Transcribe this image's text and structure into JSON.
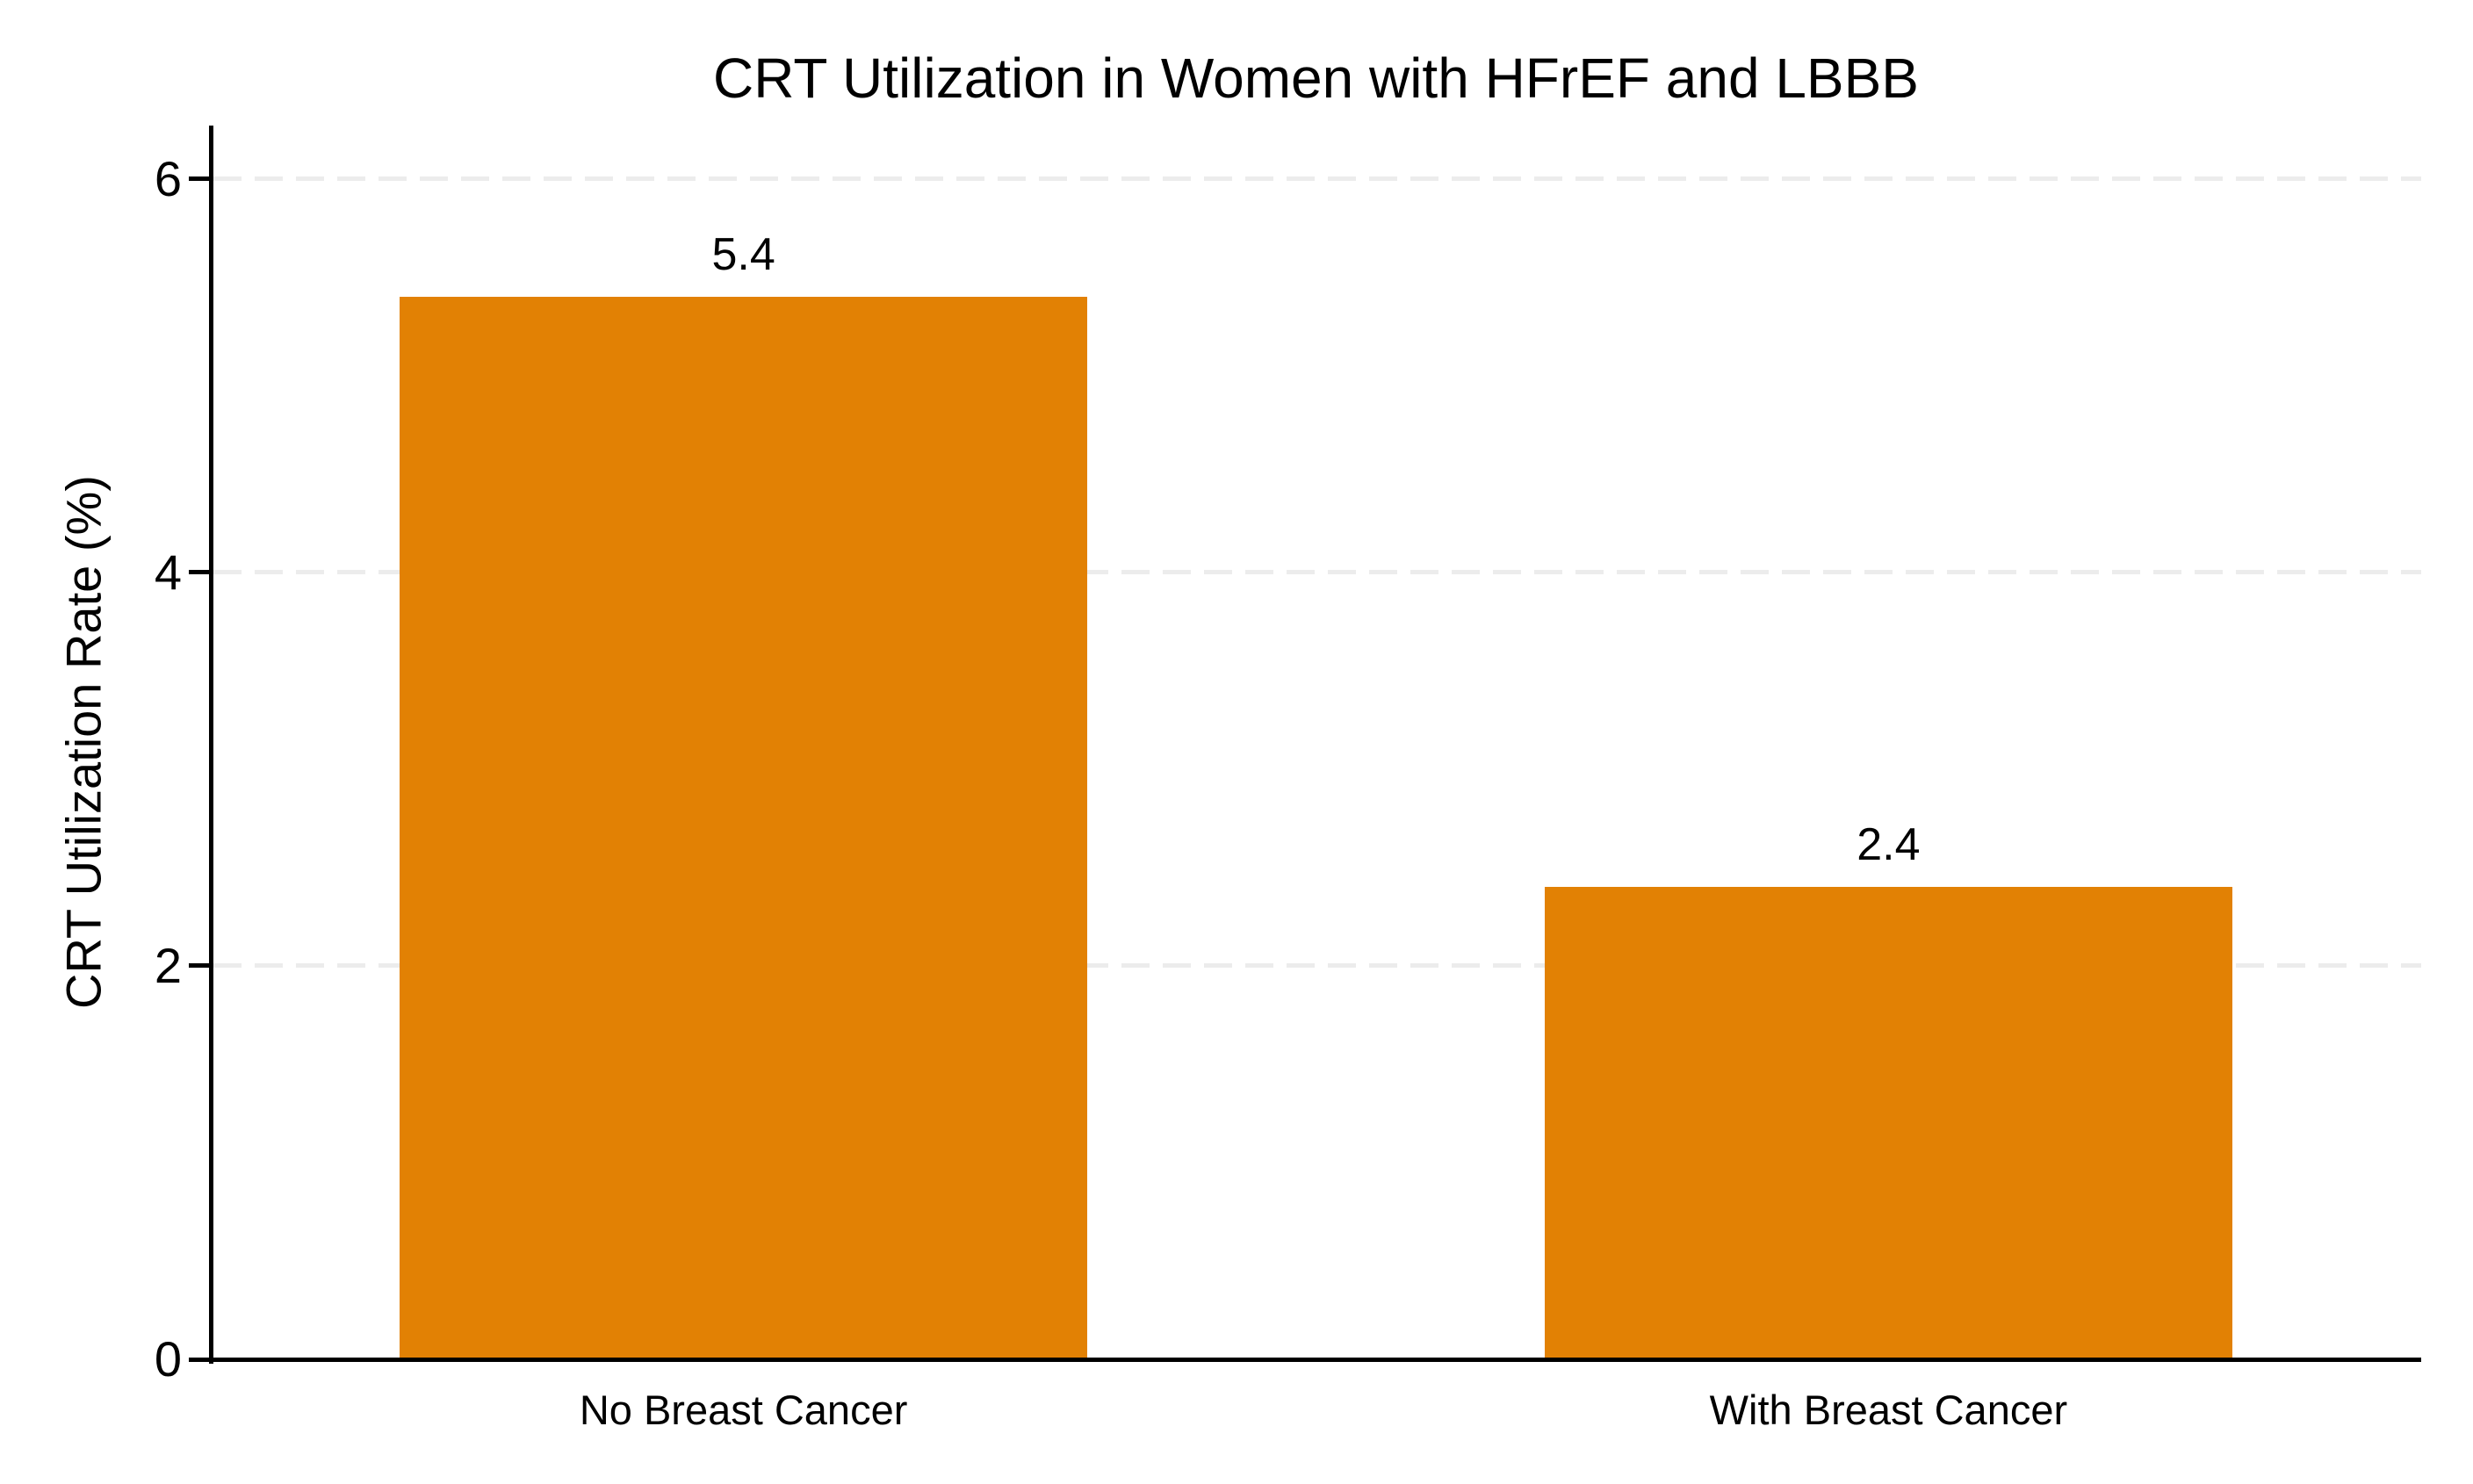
{
  "chart_data": {
    "type": "bar",
    "title": "CRT Utilization in Women with HFrEF and LBBB",
    "xlabel": "",
    "ylabel": "CRT Utilization Rate (%)",
    "categories": [
      "No Breast Cancer",
      "With Breast Cancer"
    ],
    "values": [
      5.4,
      2.4
    ],
    "value_labels": [
      "5.4",
      "2.4"
    ],
    "yticks": [
      0,
      2,
      4,
      6
    ],
    "ylim": [
      0,
      6.27
    ],
    "grid": {
      "axis": "y",
      "style": "dashed",
      "lines_at": [
        2,
        4,
        6
      ]
    },
    "legend": "none",
    "colors": {
      "bar": "#E28104",
      "grid_line": "#ECECEC",
      "axis_line": "#000000",
      "text": "#000000",
      "background": "#FFFFFF"
    }
  }
}
